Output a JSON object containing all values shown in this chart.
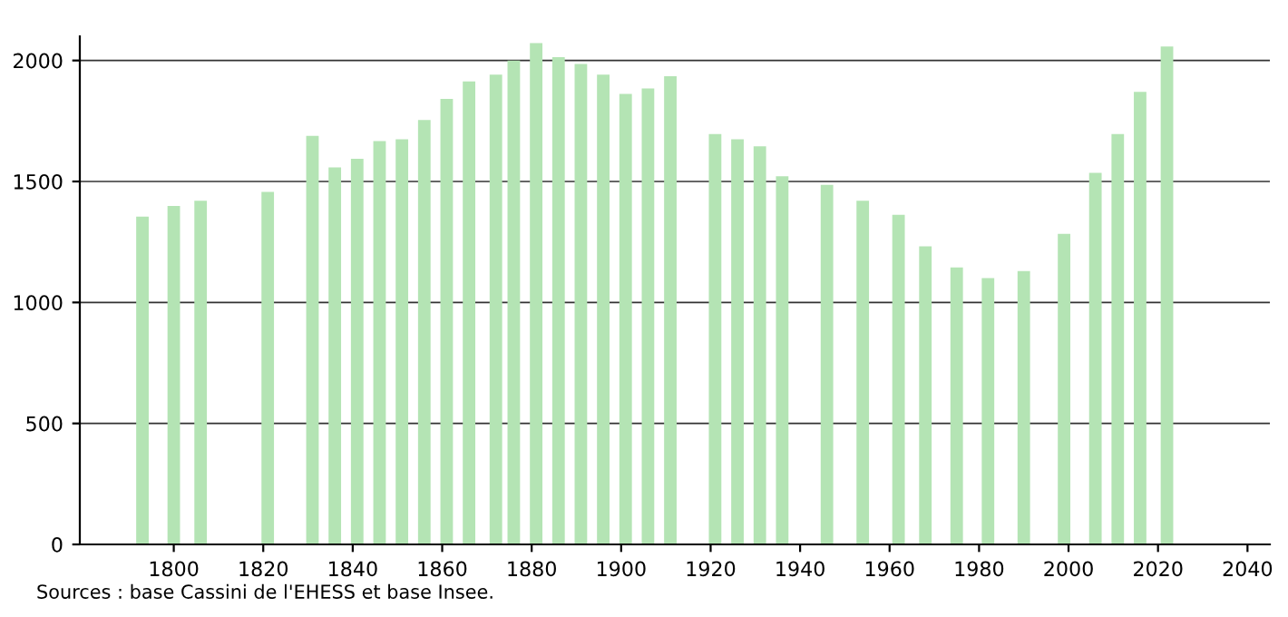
{
  "chart_data": {
    "type": "bar",
    "x": [
      1793,
      1800,
      1806,
      1821,
      1831,
      1836,
      1841,
      1846,
      1851,
      1856,
      1861,
      1866,
      1872,
      1876,
      1881,
      1886,
      1891,
      1896,
      1901,
      1906,
      1911,
      1921,
      1926,
      1931,
      1936,
      1946,
      1954,
      1962,
      1968,
      1975,
      1982,
      1990,
      1999,
      2006,
      2011,
      2016,
      2022
    ],
    "values": [
      1355,
      1399,
      1420,
      1457,
      1688,
      1558,
      1594,
      1667,
      1674,
      1754,
      1841,
      1913,
      1942,
      2000,
      2072,
      2014,
      1986,
      1942,
      1862,
      1884,
      1935,
      1696,
      1674,
      1645,
      1522,
      1486,
      1420,
      1362,
      1232,
      1145,
      1101,
      1130,
      1283,
      1536,
      1696,
      1870,
      2058
    ],
    "color": "#b4e4b4",
    "xlim": [
      1779,
      2045
    ],
    "xticks": [
      1800,
      1820,
      1840,
      1860,
      1880,
      1900,
      1920,
      1940,
      1960,
      1980,
      2000,
      2020,
      2040
    ],
    "ylim": [
      0,
      2100
    ],
    "yticks": [
      0,
      500,
      1000,
      1500,
      2000
    ],
    "grid": "y",
    "legend": false,
    "annotations": [
      "Sources : base Cassini de l'EHESS et base Insee."
    ]
  }
}
